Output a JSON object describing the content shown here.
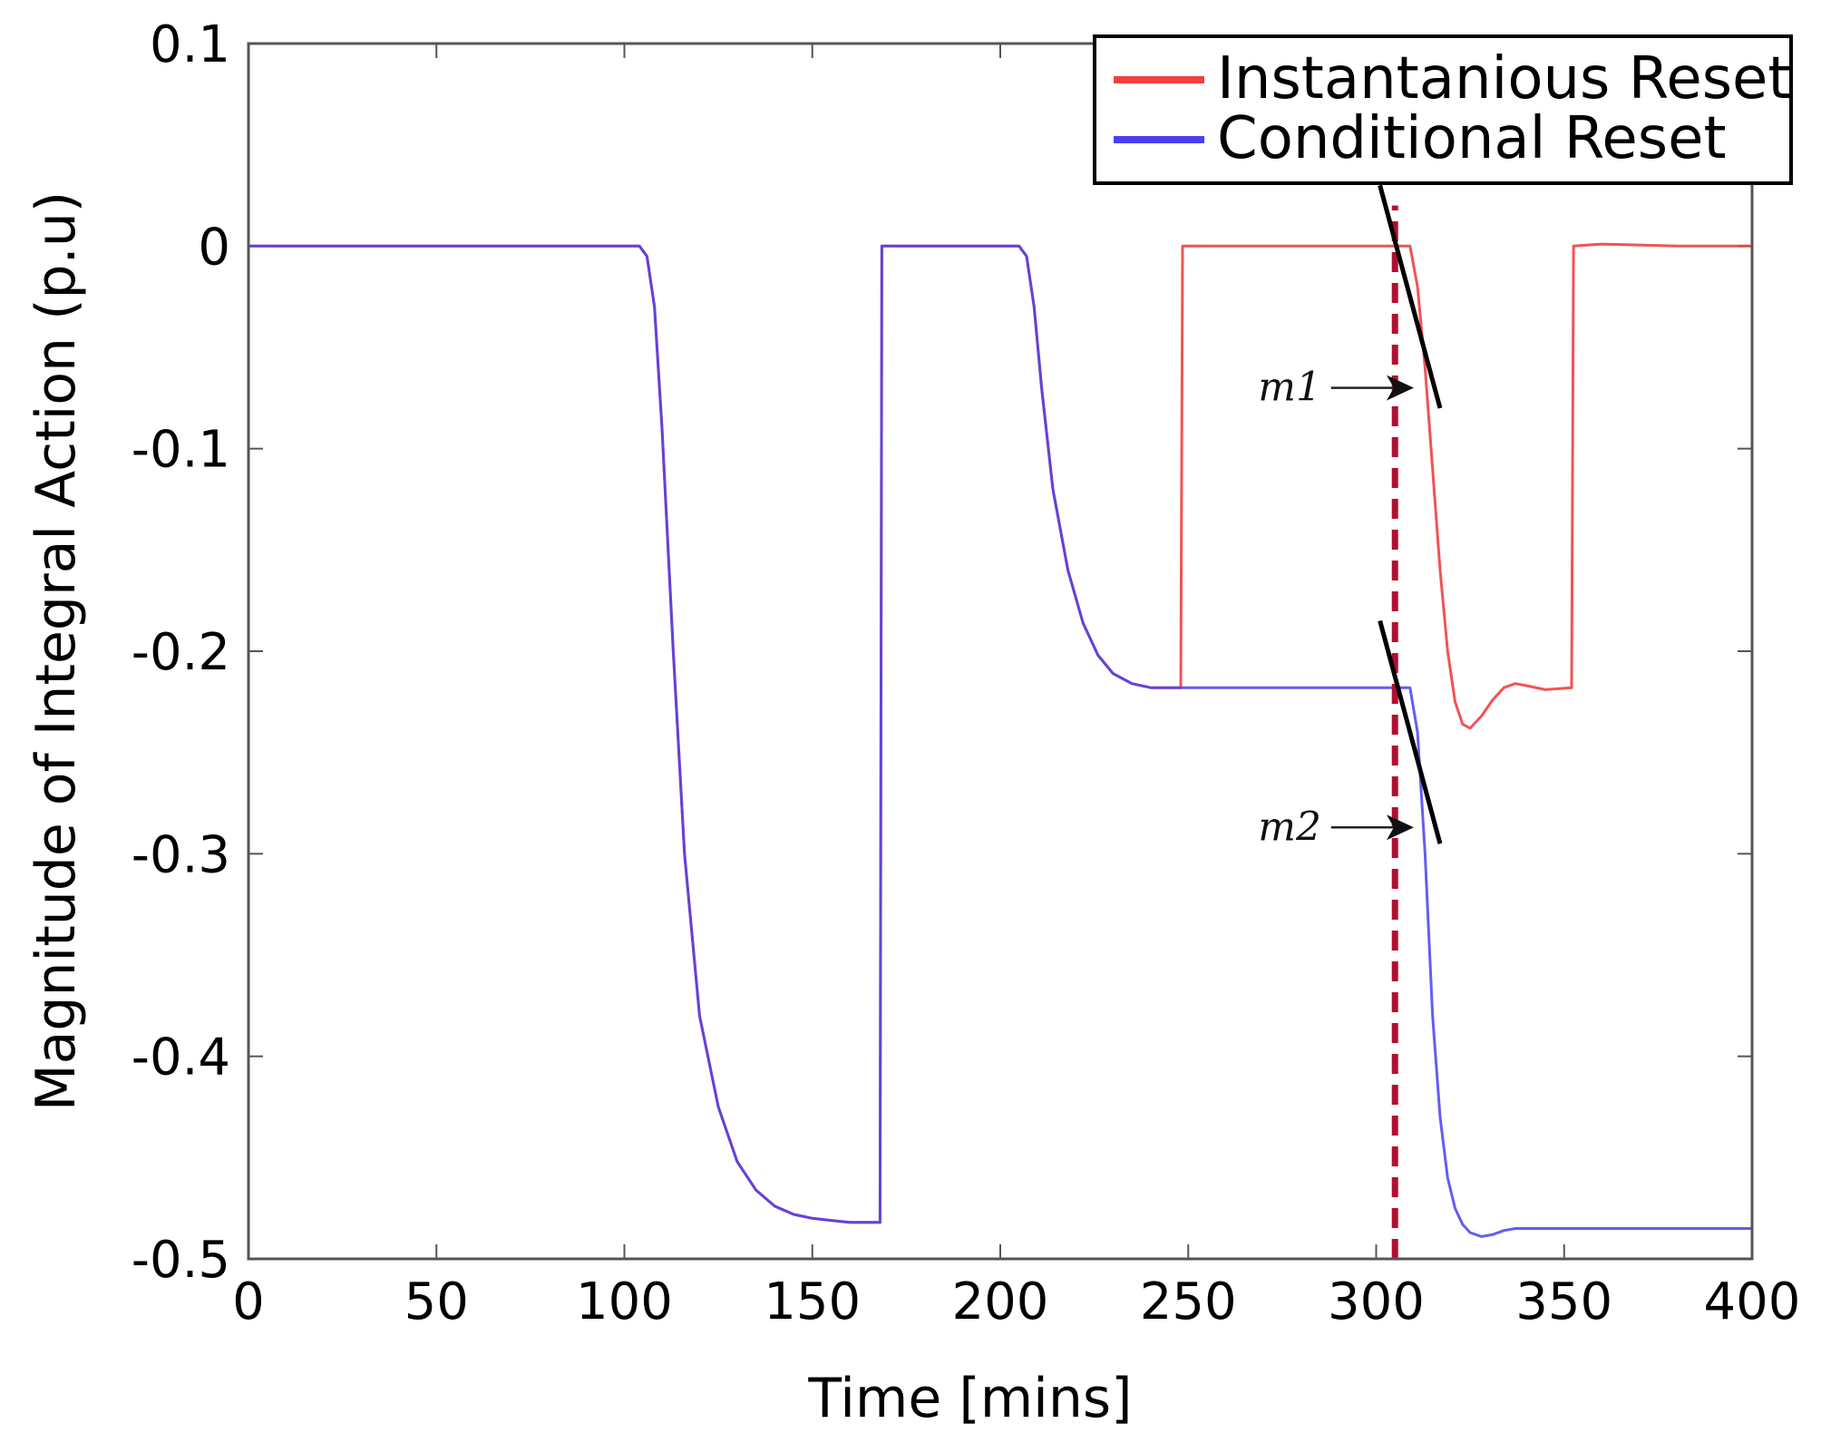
{
  "chart_data": {
    "type": "line",
    "title": "",
    "xlabel": "Time [mins]",
    "ylabel": "Magnitude of Integral Action (p.u)",
    "xlim": [
      0,
      400
    ],
    "ylim": [
      -0.5,
      0.1
    ],
    "xticks": [
      0,
      50,
      100,
      150,
      200,
      250,
      300,
      350,
      400
    ],
    "yticks": [
      0.1,
      0,
      -0.1,
      -0.2,
      -0.3,
      -0.4,
      -0.5
    ],
    "xtick_labels": [
      "0",
      "50",
      "100",
      "150",
      "200",
      "250",
      "300",
      "350",
      "400"
    ],
    "ytick_labels": [
      "0.1",
      "0",
      "-0.1",
      "-0.2",
      "-0.3",
      "-0.4",
      "-0.5"
    ],
    "legend_position": "top-right",
    "series": [
      {
        "name": "Instantanious Reset",
        "color": "#f04040",
        "x": [
          0,
          104,
          106,
          108,
          110,
          113,
          116,
          120,
          125,
          130,
          135,
          140,
          145,
          150,
          155,
          160,
          168,
          168.5,
          205,
          207,
          209,
          211,
          214,
          218,
          222,
          226,
          230,
          235,
          240,
          248,
          248.5,
          309,
          311,
          313,
          315,
          317,
          319,
          321,
          323,
          325,
          328,
          331,
          334,
          337,
          340,
          345,
          352,
          352.5,
          360,
          380,
          400
        ],
        "y": [
          0,
          0,
          -0.005,
          -0.03,
          -0.09,
          -0.2,
          -0.3,
          -0.38,
          -0.425,
          -0.452,
          -0.466,
          -0.474,
          -0.478,
          -0.48,
          -0.481,
          -0.482,
          -0.482,
          0,
          0,
          -0.005,
          -0.03,
          -0.07,
          -0.12,
          -0.16,
          -0.186,
          -0.202,
          -0.211,
          -0.216,
          -0.218,
          -0.218,
          0,
          0,
          -0.02,
          -0.06,
          -0.11,
          -0.16,
          -0.2,
          -0.225,
          -0.236,
          -0.238,
          -0.232,
          -0.224,
          -0.218,
          -0.216,
          -0.217,
          -0.219,
          -0.218,
          0,
          0.001,
          0,
          0
        ]
      },
      {
        "name": "Conditional Reset",
        "color": "#4a3ff0",
        "x": [
          0,
          104,
          106,
          108,
          110,
          113,
          116,
          120,
          125,
          130,
          135,
          140,
          145,
          150,
          155,
          160,
          168,
          168.5,
          205,
          207,
          209,
          211,
          214,
          218,
          222,
          226,
          230,
          235,
          240,
          309,
          311,
          313,
          315,
          317,
          319,
          321,
          323,
          325,
          328,
          331,
          334,
          337,
          340,
          345,
          350,
          360,
          380,
          400
        ],
        "y": [
          0,
          0,
          -0.005,
          -0.03,
          -0.09,
          -0.2,
          -0.3,
          -0.38,
          -0.425,
          -0.452,
          -0.466,
          -0.474,
          -0.478,
          -0.48,
          -0.481,
          -0.482,
          -0.482,
          0,
          0,
          -0.005,
          -0.03,
          -0.07,
          -0.12,
          -0.16,
          -0.186,
          -0.202,
          -0.211,
          -0.216,
          -0.218,
          -0.218,
          -0.24,
          -0.3,
          -0.38,
          -0.43,
          -0.46,
          -0.475,
          -0.483,
          -0.487,
          -0.489,
          -0.488,
          -0.486,
          -0.485,
          -0.485,
          -0.485,
          -0.485,
          -0.485,
          -0.485,
          -0.485
        ]
      }
    ],
    "annotations": {
      "vline": {
        "x": 305,
        "y_from": -0.5,
        "y_to": 0.02,
        "color": "#b01030",
        "style": "dashed"
      },
      "tangents": [
        {
          "label": "m1",
          "x1": 301,
          "y1": 0.03,
          "x2": 317,
          "y2": -0.08
        },
        {
          "label": "m2",
          "x1": 301,
          "y1": -0.185,
          "x2": 317,
          "y2": -0.295
        }
      ],
      "arrows": [
        {
          "label": "m1",
          "from_x": 288,
          "to_x": 310,
          "y": -0.07,
          "label_x": 277
        },
        {
          "label": "m2",
          "from_x": 288,
          "to_x": 310,
          "y": -0.287,
          "label_x": 277
        }
      ]
    }
  }
}
